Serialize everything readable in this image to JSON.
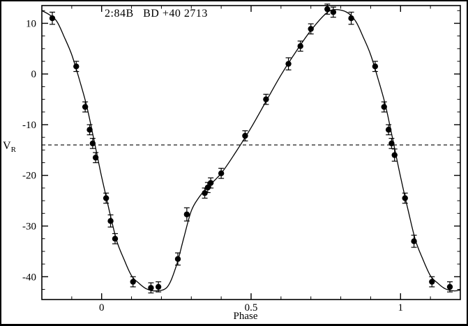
{
  "colors": {
    "background": "#ffffff",
    "foreground": "#000000"
  },
  "chart_data": {
    "type": "scatter",
    "title": "2:84B   BD +40 2713",
    "xlabel": "Phase",
    "ylabel_base": "V",
    "ylabel_sub": "R",
    "xlim": [
      -0.2,
      1.2
    ],
    "ylim": [
      -44.5,
      13.5
    ],
    "x_ticks": [
      {
        "value": 0,
        "label": "0"
      },
      {
        "value": 0.5,
        "label": "0.5"
      },
      {
        "value": 1,
        "label": "1"
      }
    ],
    "y_ticks": [
      {
        "value": 10,
        "label": "10"
      },
      {
        "value": 0,
        "label": "0"
      },
      {
        "value": -10,
        "label": "-10"
      },
      {
        "value": -20,
        "label": "-20"
      },
      {
        "value": -30,
        "label": "-30"
      },
      {
        "value": -40,
        "label": "-40"
      }
    ],
    "x_minor_step": 0.1,
    "y_minor_step": 2.5,
    "grid": false,
    "legend": false,
    "dashed_line_y": -14,
    "marker_color": "#000000",
    "line_color": "#000000",
    "points": [
      [
        -0.165,
        11.0,
        1.2
      ],
      [
        -0.085,
        1.5,
        1.0
      ],
      [
        -0.055,
        -6.5,
        1.0
      ],
      [
        -0.04,
        -11.0,
        1.0
      ],
      [
        -0.03,
        -13.7,
        1.0
      ],
      [
        -0.02,
        -16.5,
        1.0
      ],
      [
        0.015,
        -24.5,
        1.0
      ],
      [
        0.03,
        -29.0,
        1.2
      ],
      [
        0.045,
        -32.5,
        1.0
      ],
      [
        0.105,
        -41.0,
        1.0
      ],
      [
        0.165,
        -42.2,
        1.0
      ],
      [
        0.19,
        -42.0,
        1.0
      ],
      [
        0.255,
        -36.5,
        1.2
      ],
      [
        0.285,
        -27.7,
        1.3
      ],
      [
        0.345,
        -23.5,
        1.0
      ],
      [
        0.355,
        -22.4,
        1.0
      ],
      [
        0.365,
        -21.5,
        1.0
      ],
      [
        0.4,
        -19.6,
        1.0
      ],
      [
        0.48,
        -12.2,
        1.0
      ],
      [
        0.55,
        -5.0,
        1.0
      ],
      [
        0.625,
        2.0,
        1.2
      ],
      [
        0.665,
        5.5,
        1.0
      ],
      [
        0.7,
        8.9,
        1.0
      ],
      [
        0.755,
        12.8,
        1.0
      ],
      [
        0.775,
        12.2,
        1.0
      ],
      [
        0.835,
        11.0,
        1.2
      ],
      [
        0.915,
        1.5,
        1.0
      ],
      [
        0.945,
        -6.5,
        1.0
      ],
      [
        0.96,
        -11.0,
        1.0
      ],
      [
        0.97,
        -13.7,
        1.0
      ],
      [
        0.98,
        -16.0,
        1.2
      ],
      [
        1.015,
        -24.5,
        1.0
      ],
      [
        1.045,
        -33.0,
        1.2
      ],
      [
        1.105,
        -41.0,
        1.0
      ],
      [
        1.165,
        -42.0,
        1.0
      ]
    ],
    "curve": [
      [
        -0.2,
        12.5
      ],
      [
        -0.175,
        11.7
      ],
      [
        -0.15,
        10.4
      ],
      [
        -0.125,
        7.3
      ],
      [
        -0.1,
        3.8
      ],
      [
        -0.075,
        -1.0
      ],
      [
        -0.05,
        -6.3
      ],
      [
        -0.025,
        -13.2
      ],
      [
        0.0,
        -20.3
      ],
      [
        0.025,
        -26.8
      ],
      [
        0.05,
        -32.8
      ],
      [
        0.075,
        -36.6
      ],
      [
        0.1,
        -39.8
      ],
      [
        0.125,
        -41.3
      ],
      [
        0.15,
        -42.4
      ],
      [
        0.18,
        -42.8
      ],
      [
        0.22,
        -42.0
      ],
      [
        0.25,
        -37.8
      ],
      [
        0.275,
        -32.3
      ],
      [
        0.3,
        -27.0
      ],
      [
        0.325,
        -24.4
      ],
      [
        0.35,
        -22.6
      ],
      [
        0.4,
        -19.6
      ],
      [
        0.45,
        -15.3
      ],
      [
        0.5,
        -10.6
      ],
      [
        0.55,
        -5.4
      ],
      [
        0.6,
        -0.2
      ],
      [
        0.65,
        4.4
      ],
      [
        0.7,
        8.6
      ],
      [
        0.75,
        11.9
      ],
      [
        0.78,
        12.7
      ],
      [
        0.82,
        12.2
      ],
      [
        0.85,
        10.4
      ],
      [
        0.875,
        7.3
      ],
      [
        0.9,
        3.8
      ],
      [
        0.925,
        -1.0
      ],
      [
        0.95,
        -6.3
      ],
      [
        0.975,
        -13.2
      ],
      [
        1.0,
        -20.3
      ],
      [
        1.025,
        -26.8
      ],
      [
        1.05,
        -32.8
      ],
      [
        1.075,
        -36.6
      ],
      [
        1.1,
        -39.8
      ],
      [
        1.125,
        -41.3
      ],
      [
        1.15,
        -42.4
      ],
      [
        1.18,
        -42.8
      ],
      [
        1.2,
        -42.6
      ]
    ]
  }
}
